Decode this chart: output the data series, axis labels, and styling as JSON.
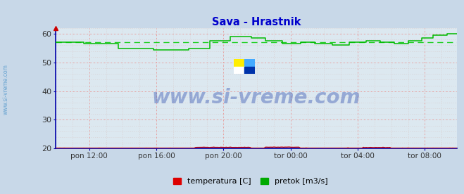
{
  "title": "Sava - Hrastnik",
  "title_color": "#0000cc",
  "bg_color": "#c8d8e8",
  "plot_bg_color": "#dce8f0",
  "grid_color_major": "#e8a0a0",
  "grid_color_minor": "#d8c8c8",
  "ylim": [
    20,
    62
  ],
  "yticks": [
    20,
    30,
    40,
    50,
    60
  ],
  "watermark_text": "www.si-vreme.com",
  "watermark_color": "#2244aa",
  "left_label": "www.si-vreme.com",
  "left_label_color": "#5599cc",
  "legend_labels": [
    "temperatura [C]",
    "pretok [m3/s]"
  ],
  "legend_colors": [
    "#dd0000",
    "#00aa00"
  ],
  "x_tick_labels": [
    "pon 12:00",
    "pon 16:00",
    "pon 20:00",
    "tor 00:00",
    "tor 04:00",
    "tor 08:00"
  ],
  "n_points": 288,
  "pretok_mean": 57.2,
  "temperatura_mean": 20.1,
  "axis_color": "#0000cc",
  "tick_color": "#333333",
  "arrow_color": "#cc0000",
  "spine_color": "#0000aa"
}
